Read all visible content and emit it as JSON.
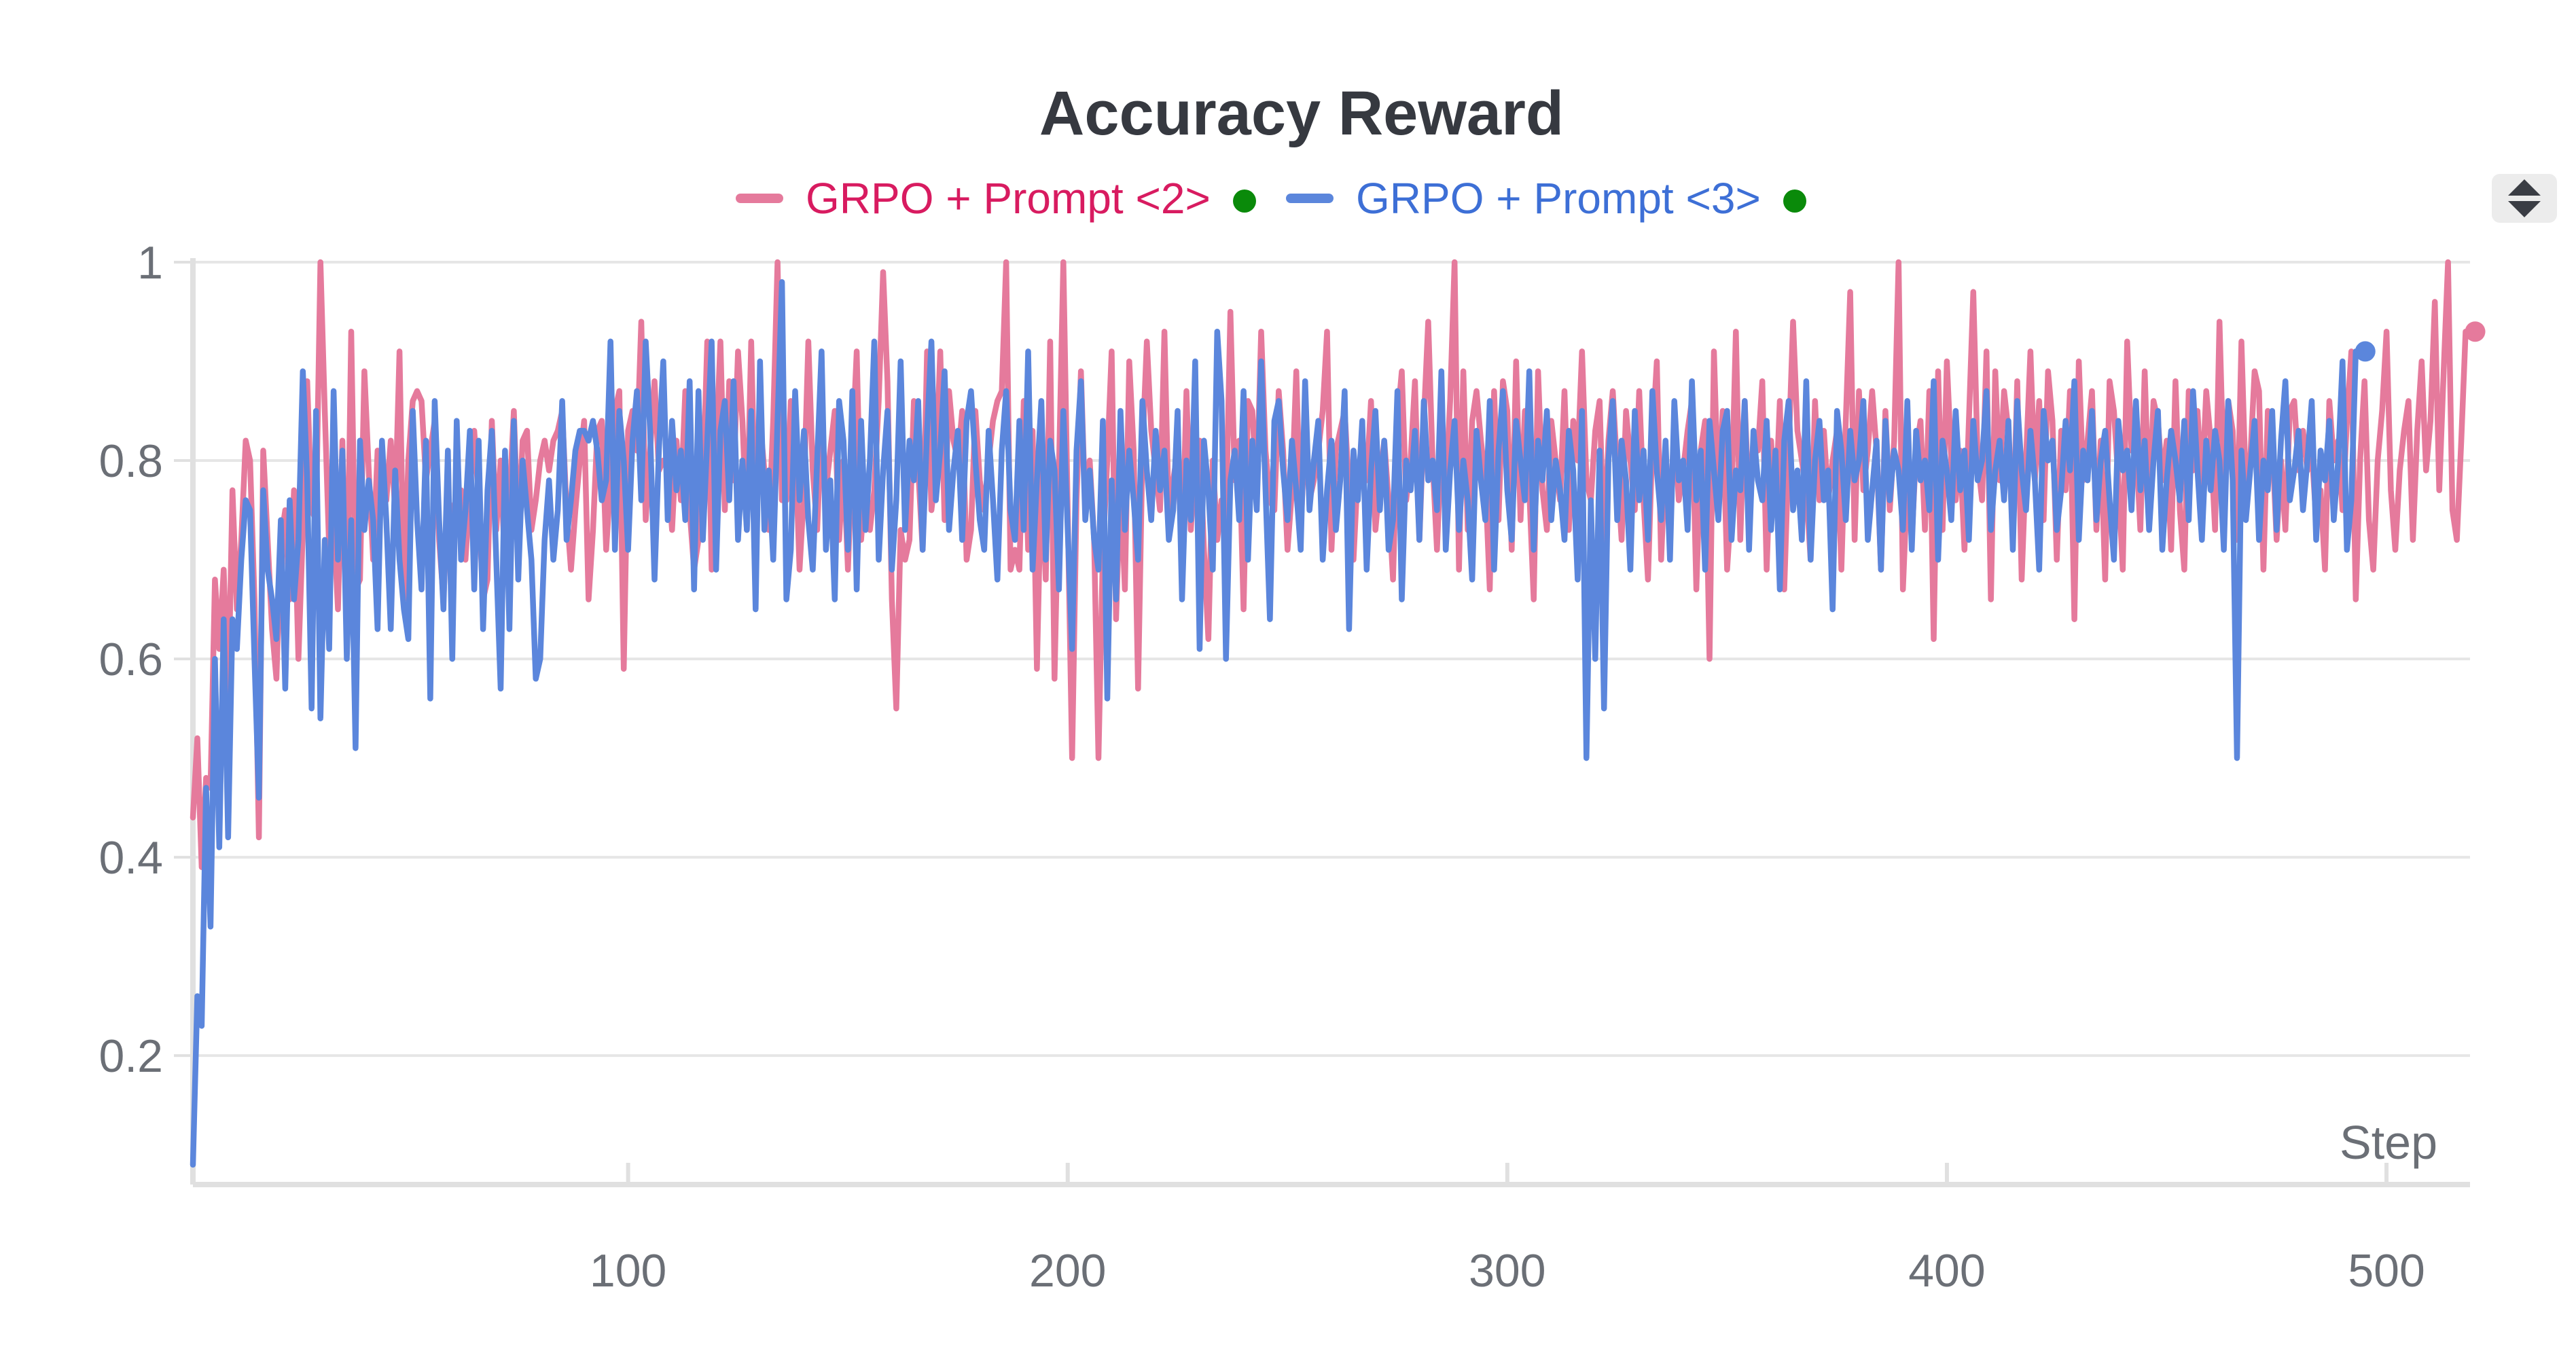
{
  "chart_data": {
    "type": "line",
    "title": "Accuracy Reward",
    "xlabel": "Step",
    "ylabel": "",
    "xlim": [
      1,
      519
    ],
    "ylim": [
      0.07,
      1.0
    ],
    "x_ticks": [
      "100",
      "200",
      "300",
      "400",
      "500"
    ],
    "y_ticks": [
      "0.2",
      "0.4",
      "0.6",
      "0.8",
      "1"
    ],
    "grid": true,
    "legend_position": "top-center",
    "series": [
      {
        "name": "GRPO + Prompt <2>",
        "color": "#e57a9c",
        "legend_color": "#d81b60",
        "status_color": "#0a8a0a",
        "values": [
          0.44,
          0.52,
          0.39,
          0.48,
          0.47,
          0.68,
          0.61,
          0.69,
          0.55,
          0.77,
          0.65,
          0.72,
          0.82,
          0.8,
          0.66,
          0.42,
          0.81,
          0.72,
          0.63,
          0.58,
          0.72,
          0.75,
          0.66,
          0.77,
          0.6,
          0.73,
          0.88,
          0.75,
          0.74,
          1.0,
          0.85,
          0.71,
          0.74,
          0.65,
          0.82,
          0.63,
          0.93,
          0.67,
          0.68,
          0.89,
          0.79,
          0.7,
          0.81,
          0.77,
          0.76,
          0.82,
          0.75,
          0.91,
          0.66,
          0.8,
          0.86,
          0.87,
          0.86,
          0.78,
          0.81,
          0.84,
          0.72,
          0.66,
          0.76,
          0.75,
          0.75,
          0.77,
          0.7,
          0.77,
          0.83,
          0.76,
          0.66,
          0.68,
          0.84,
          0.73,
          0.8,
          0.69,
          0.76,
          0.85,
          0.72,
          0.82,
          0.83,
          0.73,
          0.76,
          0.8,
          0.82,
          0.79,
          0.82,
          0.83,
          0.85,
          0.75,
          0.69,
          0.75,
          0.8,
          0.84,
          0.66,
          0.73,
          0.83,
          0.84,
          0.71,
          0.78,
          0.85,
          0.87,
          0.59,
          0.83,
          0.85,
          0.81,
          0.94,
          0.74,
          0.81,
          0.88,
          0.79,
          0.8,
          0.79,
          0.73,
          0.82,
          0.76,
          0.87,
          0.75,
          0.69,
          0.72,
          0.77,
          0.92,
          0.69,
          0.81,
          0.92,
          0.75,
          0.88,
          0.78,
          0.91,
          0.84,
          0.73,
          0.92,
          0.73,
          0.84,
          0.79,
          0.73,
          0.84,
          1.0,
          0.76,
          0.76,
          0.86,
          0.82,
          0.69,
          0.77,
          0.92,
          0.79,
          0.73,
          0.84,
          0.77,
          0.81,
          0.85,
          0.72,
          0.8,
          0.69,
          0.81,
          0.91,
          0.72,
          0.78,
          0.73,
          0.77,
          0.86,
          0.99,
          0.88,
          0.66,
          0.55,
          0.73,
          0.7,
          0.72,
          0.86,
          0.79,
          0.71,
          0.91,
          0.75,
          0.79,
          0.91,
          0.74,
          0.87,
          0.82,
          0.8,
          0.85,
          0.7,
          0.73,
          0.85,
          0.78,
          0.75,
          0.8,
          0.84,
          0.86,
          0.87,
          1.0,
          0.69,
          0.71,
          0.69,
          0.86,
          0.71,
          0.83,
          0.59,
          0.79,
          0.68,
          0.92,
          0.58,
          0.79,
          1.0,
          0.75,
          0.5,
          0.76,
          0.89,
          0.75,
          0.8,
          0.72,
          0.5,
          0.71,
          0.8,
          0.91,
          0.64,
          0.78,
          0.67,
          0.9,
          0.81,
          0.57,
          0.81,
          0.92,
          0.83,
          0.79,
          0.75,
          0.93,
          0.74,
          0.78,
          0.81,
          0.7,
          0.87,
          0.73,
          0.8,
          0.82,
          0.71,
          0.62,
          0.8,
          0.72,
          0.76,
          0.74,
          0.95,
          0.78,
          0.82,
          0.65,
          0.86,
          0.85,
          0.77,
          0.93,
          0.81,
          0.76,
          0.75,
          0.87,
          0.81,
          0.71,
          0.77,
          0.89,
          0.73,
          0.83,
          0.76,
          0.78,
          0.81,
          0.85,
          0.93,
          0.71,
          0.81,
          0.83,
          0.85,
          0.77,
          0.7,
          0.79,
          0.8,
          0.78,
          0.86,
          0.73,
          0.78,
          0.82,
          0.76,
          0.68,
          0.84,
          0.89,
          0.76,
          0.8,
          0.88,
          0.72,
          0.84,
          0.94,
          0.8,
          0.71,
          0.82,
          0.77,
          0.86,
          1.0,
          0.69,
          0.89,
          0.73,
          0.84,
          0.87,
          0.82,
          0.78,
          0.67,
          0.87,
          0.74,
          0.88,
          0.85,
          0.71,
          0.9,
          0.74,
          0.85,
          0.77,
          0.66,
          0.89,
          0.77,
          0.73,
          0.84,
          0.8,
          0.76,
          0.87,
          0.73,
          0.84,
          0.8,
          0.91,
          0.78,
          0.76,
          0.83,
          0.86,
          0.71,
          0.82,
          0.87,
          0.79,
          0.72,
          0.85,
          0.8,
          0.75,
          0.87,
          0.76,
          0.68,
          0.82,
          0.9,
          0.7,
          0.81,
          0.73,
          0.84,
          0.76,
          0.79,
          0.83,
          0.86,
          0.67,
          0.81,
          0.84,
          0.6,
          0.91,
          0.76,
          0.85,
          0.69,
          0.76,
          0.93,
          0.72,
          0.86,
          0.75,
          0.82,
          0.81,
          0.88,
          0.69,
          0.82,
          0.75,
          0.86,
          0.67,
          0.81,
          0.94,
          0.83,
          0.8,
          0.77,
          0.7,
          0.86,
          0.76,
          0.83,
          0.76,
          0.8,
          0.83,
          0.69,
          0.84,
          0.97,
          0.72,
          0.87,
          0.77,
          0.81,
          0.87,
          0.81,
          0.69,
          0.85,
          0.75,
          0.82,
          1.0,
          0.67,
          0.78,
          0.72,
          0.81,
          0.84,
          0.73,
          0.87,
          0.62,
          0.89,
          0.73,
          0.9,
          0.8,
          0.76,
          0.81,
          0.71,
          0.84,
          0.97,
          0.8,
          0.76,
          0.91,
          0.66,
          0.89,
          0.78,
          0.87,
          0.83,
          0.72,
          0.88,
          0.68,
          0.8,
          0.91,
          0.78,
          0.86,
          0.74,
          0.89,
          0.84,
          0.7,
          0.83,
          0.77,
          0.87,
          0.64,
          0.9,
          0.78,
          0.82,
          0.87,
          0.73,
          0.82,
          0.68,
          0.88,
          0.85,
          0.78,
          0.69,
          0.92,
          0.81,
          0.82,
          0.73,
          0.89,
          0.75,
          0.86,
          0.84,
          0.78,
          0.82,
          0.71,
          0.88,
          0.75,
          0.69,
          0.87,
          0.79,
          0.85,
          0.77,
          0.87,
          0.82,
          0.73,
          0.94,
          0.78,
          0.86,
          0.83,
          0.72,
          0.92,
          0.77,
          0.8,
          0.89,
          0.87,
          0.69,
          0.85,
          0.82,
          0.72,
          0.8,
          0.73,
          0.85,
          0.86,
          0.79,
          0.83,
          0.79,
          0.81,
          0.74,
          0.77,
          0.69,
          0.86,
          0.8,
          0.82,
          0.75,
          0.84,
          0.91,
          0.66,
          0.8,
          0.88,
          0.74,
          0.69,
          0.8,
          0.85,
          0.93,
          0.77,
          0.71,
          0.79,
          0.83,
          0.86,
          0.72,
          0.83,
          0.9,
          0.79,
          0.84,
          0.96,
          0.77,
          0.89,
          1.0,
          0.75,
          0.72,
          0.82,
          0.93
        ]
      },
      {
        "name": "GRPO + Prompt <3>",
        "color": "#5b86dc",
        "legend_color": "#3d6fd6",
        "status_color": "#0a8a0a",
        "values": [
          0.09,
          0.26,
          0.23,
          0.47,
          0.33,
          0.6,
          0.41,
          0.64,
          0.42,
          0.64,
          0.61,
          0.7,
          0.76,
          0.75,
          0.6,
          0.46,
          0.77,
          0.69,
          0.66,
          0.62,
          0.74,
          0.57,
          0.76,
          0.66,
          0.72,
          0.89,
          0.78,
          0.55,
          0.85,
          0.54,
          0.72,
          0.61,
          0.87,
          0.7,
          0.81,
          0.6,
          0.74,
          0.51,
          0.82,
          0.73,
          0.78,
          0.74,
          0.63,
          0.82,
          0.74,
          0.63,
          0.79,
          0.7,
          0.65,
          0.62,
          0.85,
          0.74,
          0.67,
          0.82,
          0.56,
          0.86,
          0.74,
          0.65,
          0.81,
          0.6,
          0.84,
          0.7,
          0.75,
          0.83,
          0.67,
          0.82,
          0.63,
          0.77,
          0.83,
          0.7,
          0.57,
          0.81,
          0.63,
          0.84,
          0.68,
          0.8,
          0.75,
          0.7,
          0.58,
          0.6,
          0.72,
          0.78,
          0.7,
          0.75,
          0.86,
          0.72,
          0.76,
          0.81,
          0.83,
          0.83,
          0.82,
          0.84,
          0.81,
          0.76,
          0.78,
          0.92,
          0.71,
          0.85,
          0.8,
          0.71,
          0.82,
          0.87,
          0.76,
          0.92,
          0.83,
          0.68,
          0.81,
          0.9,
          0.74,
          0.84,
          0.77,
          0.81,
          0.74,
          0.88,
          0.67,
          0.87,
          0.72,
          0.82,
          0.92,
          0.69,
          0.83,
          0.86,
          0.76,
          0.88,
          0.72,
          0.8,
          0.73,
          0.85,
          0.65,
          0.9,
          0.73,
          0.79,
          0.7,
          0.84,
          0.98,
          0.66,
          0.71,
          0.87,
          0.76,
          0.83,
          0.74,
          0.69,
          0.8,
          0.91,
          0.71,
          0.78,
          0.66,
          0.86,
          0.82,
          0.71,
          0.87,
          0.67,
          0.84,
          0.73,
          0.8,
          0.92,
          0.7,
          0.79,
          0.85,
          0.69,
          0.76,
          0.9,
          0.73,
          0.82,
          0.78,
          0.86,
          0.71,
          0.83,
          0.92,
          0.76,
          0.81,
          0.89,
          0.73,
          0.79,
          0.83,
          0.72,
          0.84,
          0.87,
          0.8,
          0.74,
          0.71,
          0.83,
          0.76,
          0.68,
          0.81,
          0.87,
          0.75,
          0.72,
          0.84,
          0.73,
          0.91,
          0.69,
          0.78,
          0.86,
          0.7,
          0.82,
          0.79,
          0.67,
          0.85,
          0.73,
          0.61,
          0.81,
          0.88,
          0.74,
          0.79,
          0.72,
          0.69,
          0.84,
          0.56,
          0.78,
          0.66,
          0.85,
          0.73,
          0.81,
          0.76,
          0.7,
          0.86,
          0.79,
          0.74,
          0.83,
          0.77,
          0.81,
          0.72,
          0.75,
          0.85,
          0.66,
          0.8,
          0.74,
          0.9,
          0.61,
          0.82,
          0.77,
          0.69,
          0.93,
          0.86,
          0.6,
          0.78,
          0.81,
          0.74,
          0.87,
          0.7,
          0.82,
          0.75,
          0.9,
          0.77,
          0.64,
          0.84,
          0.86,
          0.79,
          0.74,
          0.82,
          0.77,
          0.71,
          0.88,
          0.75,
          0.8,
          0.84,
          0.7,
          0.77,
          0.82,
          0.73,
          0.78,
          0.87,
          0.63,
          0.81,
          0.76,
          0.84,
          0.69,
          0.79,
          0.85,
          0.75,
          0.82,
          0.71,
          0.74,
          0.87,
          0.66,
          0.8,
          0.77,
          0.83,
          0.72,
          0.86,
          0.78,
          0.8,
          0.75,
          0.89,
          0.71,
          0.79,
          0.84,
          0.73,
          0.8,
          0.76,
          0.68,
          0.83,
          0.78,
          0.74,
          0.86,
          0.69,
          0.81,
          0.87,
          0.77,
          0.72,
          0.84,
          0.8,
          0.76,
          0.89,
          0.71,
          0.82,
          0.78,
          0.85,
          0.74,
          0.8,
          0.77,
          0.72,
          0.83,
          0.79,
          0.68,
          0.85,
          0.5,
          0.76,
          0.6,
          0.81,
          0.55,
          0.8,
          0.86,
          0.74,
          0.82,
          0.78,
          0.69,
          0.85,
          0.76,
          0.81,
          0.72,
          0.87,
          0.79,
          0.74,
          0.82,
          0.7,
          0.86,
          0.78,
          0.8,
          0.73,
          0.88,
          0.76,
          0.81,
          0.69,
          0.84,
          0.79,
          0.74,
          0.83,
          0.85,
          0.72,
          0.79,
          0.77,
          0.86,
          0.71,
          0.83,
          0.78,
          0.76,
          0.84,
          0.73,
          0.81,
          0.67,
          0.82,
          0.86,
          0.75,
          0.79,
          0.72,
          0.88,
          0.7,
          0.8,
          0.84,
          0.76,
          0.79,
          0.65,
          0.85,
          0.81,
          0.74,
          0.83,
          0.78,
          0.8,
          0.86,
          0.72,
          0.77,
          0.82,
          0.69,
          0.84,
          0.76,
          0.81,
          0.79,
          0.73,
          0.86,
          0.71,
          0.83,
          0.78,
          0.8,
          0.75,
          0.88,
          0.7,
          0.82,
          0.79,
          0.74,
          0.85,
          0.77,
          0.81,
          0.72,
          0.84,
          0.78,
          0.8,
          0.87,
          0.73,
          0.79,
          0.82,
          0.76,
          0.84,
          0.71,
          0.86,
          0.79,
          0.75,
          0.83,
          0.78,
          0.69,
          0.85,
          0.8,
          0.82,
          0.73,
          0.77,
          0.84,
          0.79,
          0.88,
          0.72,
          0.81,
          0.78,
          0.85,
          0.74,
          0.8,
          0.83,
          0.76,
          0.7,
          0.84,
          0.79,
          0.81,
          0.75,
          0.86,
          0.77,
          0.82,
          0.73,
          0.8,
          0.85,
          0.71,
          0.78,
          0.83,
          0.8,
          0.76,
          0.84,
          0.74,
          0.87,
          0.79,
          0.72,
          0.82,
          0.77,
          0.83,
          0.8,
          0.71,
          0.86,
          0.78,
          0.5,
          0.81,
          0.74,
          0.79,
          0.84,
          0.72,
          0.8,
          0.77,
          0.85,
          0.73,
          0.82,
          0.88,
          0.76,
          0.79,
          0.83,
          0.75,
          0.8,
          0.86,
          0.72,
          0.81,
          0.78,
          0.84,
          0.74,
          0.8,
          0.9,
          0.71,
          0.76,
          0.91
        ]
      }
    ]
  },
  "controls": {
    "legend_scroll_icon": "up-down-arrows-icon"
  }
}
